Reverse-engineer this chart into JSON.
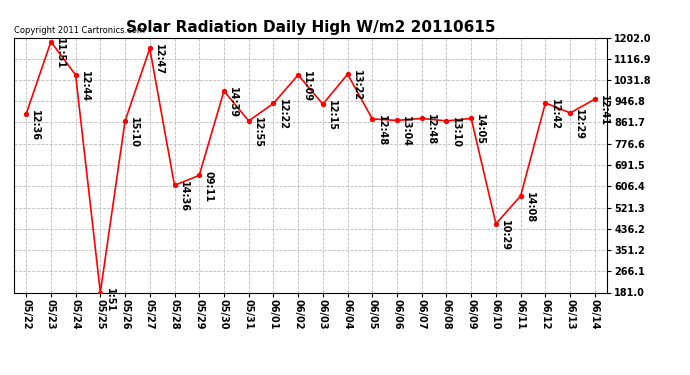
{
  "title": "Solar Radiation Daily High W/m2 20110615",
  "copyright": "Copyright 2011 Cartronics.com",
  "dates": [
    "05/22",
    "05/23",
    "05/24",
    "05/25",
    "05/26",
    "05/27",
    "05/28",
    "05/29",
    "05/30",
    "05/31",
    "06/01",
    "06/02",
    "06/03",
    "06/04",
    "06/05",
    "06/06",
    "06/07",
    "06/08",
    "06/09",
    "06/10",
    "06/11",
    "06/12",
    "06/13",
    "06/14"
  ],
  "values": [
    896,
    1185,
    1052,
    181,
    868,
    1158,
    610,
    650,
    988,
    868,
    938,
    1052,
    935,
    1055,
    876,
    870,
    878,
    868,
    878,
    456,
    568,
    940,
    900,
    955
  ],
  "times": [
    "12:36",
    "11:51",
    "12:44",
    "1:51",
    "15:10",
    "12:47",
    "14:36",
    "09:11",
    "14:39",
    "12:55",
    "12:22",
    "11:09",
    "12:15",
    "13:22",
    "12:48",
    "13:04",
    "12:48",
    "13:10",
    "14:05",
    "10:29",
    "14:08",
    "12:42",
    "12:29",
    "12:41"
  ],
  "ylim_min": 181.0,
  "ylim_max": 1202.0,
  "yticks": [
    181.0,
    266.1,
    351.2,
    436.2,
    521.3,
    606.4,
    691.5,
    776.6,
    861.7,
    946.8,
    1031.8,
    1116.9,
    1202.0
  ],
  "line_color": "#ff0000",
  "marker_color": "#000000",
  "bg_color": "#ffffff",
  "grid_color": "#bbbbbb",
  "title_fontsize": 11,
  "tick_fontsize": 7,
  "annotation_fontsize": 7,
  "copyright_fontsize": 6
}
